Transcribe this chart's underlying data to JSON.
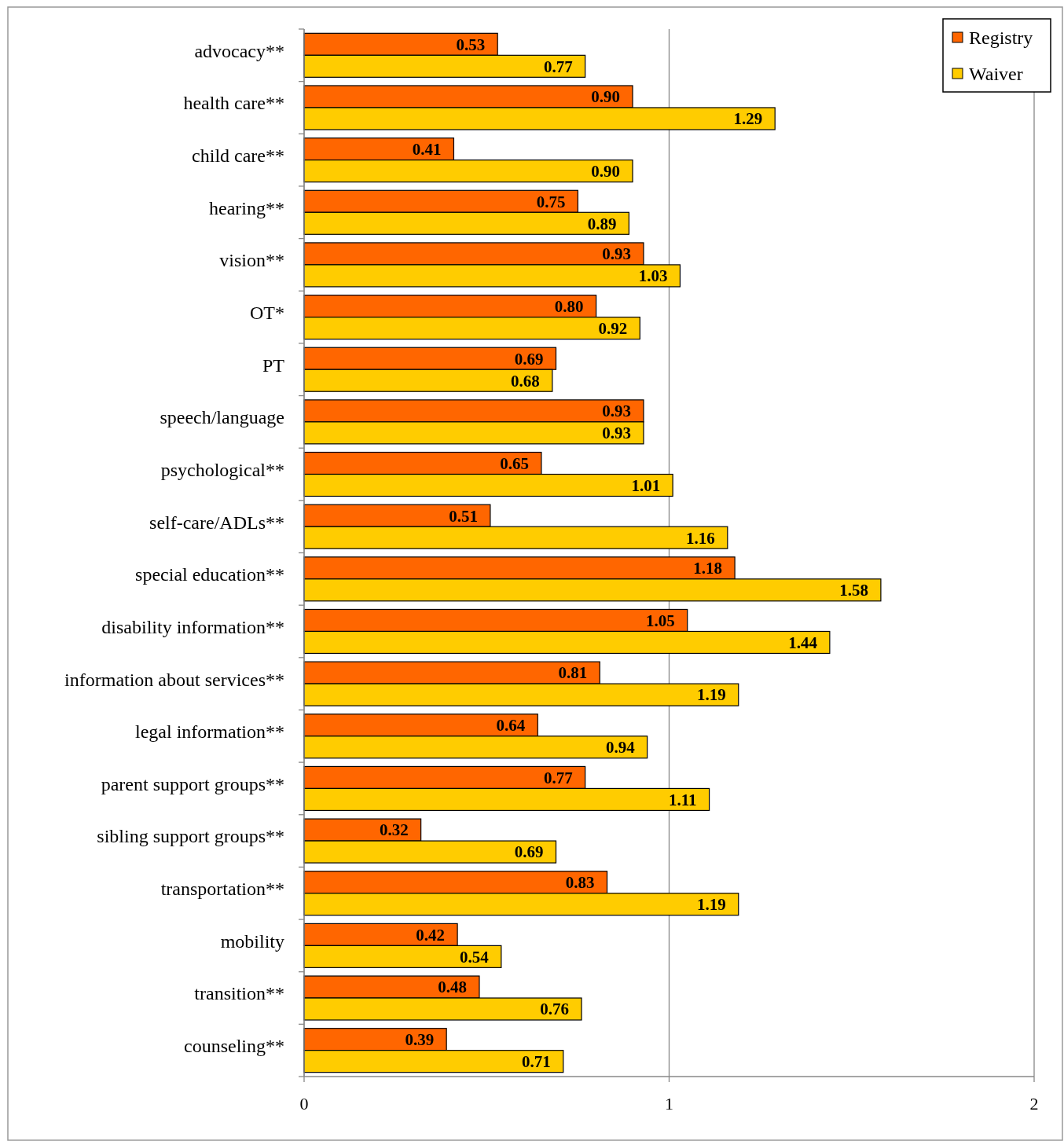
{
  "chart_data": {
    "type": "bar",
    "orientation": "horizontal",
    "categories": [
      "advocacy**",
      "health care**",
      "child care**",
      "hearing**",
      "vision**",
      "OT*",
      "PT",
      "speech/language",
      "psychological**",
      "self-care/ADLs**",
      "special education**",
      "disability information**",
      "information about services**",
      "legal information**",
      "parent support groups**",
      "sibling support groups**",
      "transportation**",
      "mobility",
      "transition**",
      "counseling**"
    ],
    "series": [
      {
        "name": "Registry",
        "color": "#ff6600",
        "values": [
          0.53,
          0.9,
          0.41,
          0.75,
          0.93,
          0.8,
          0.69,
          0.93,
          0.65,
          0.51,
          1.18,
          1.05,
          0.81,
          0.64,
          0.77,
          0.32,
          0.83,
          0.42,
          0.48,
          0.39
        ],
        "value_labels": [
          "0.53",
          "0.90",
          "0.41",
          "0.75",
          "0.93",
          "0.80",
          "0.69",
          "0.93",
          "0.65",
          "0.51",
          "1.18",
          "1.05",
          "0.81",
          "0.64",
          "0.77",
          "0.32",
          "0.83",
          "0.42",
          "0.48",
          "0.39"
        ]
      },
      {
        "name": "Waiver",
        "color": "#ffcc00",
        "values": [
          0.77,
          1.29,
          0.9,
          0.89,
          1.03,
          0.92,
          0.68,
          0.93,
          1.01,
          1.16,
          1.58,
          1.44,
          1.19,
          0.94,
          1.11,
          0.69,
          1.19,
          0.54,
          0.76,
          0.71
        ],
        "value_labels": [
          "0.77",
          "1.29",
          "0.90",
          "0.89",
          "1.03",
          "0.92",
          "0.68",
          "0.93",
          "1.01",
          "1.16",
          "1.58",
          "1.44",
          "1.19",
          "0.94",
          "1.11",
          "0.69",
          "1.19",
          "0.54",
          "0.76",
          "0.71"
        ]
      }
    ],
    "xlim": [
      0,
      2
    ],
    "xticks": [
      0,
      1,
      2
    ],
    "grid": "x",
    "legend": "top right"
  }
}
